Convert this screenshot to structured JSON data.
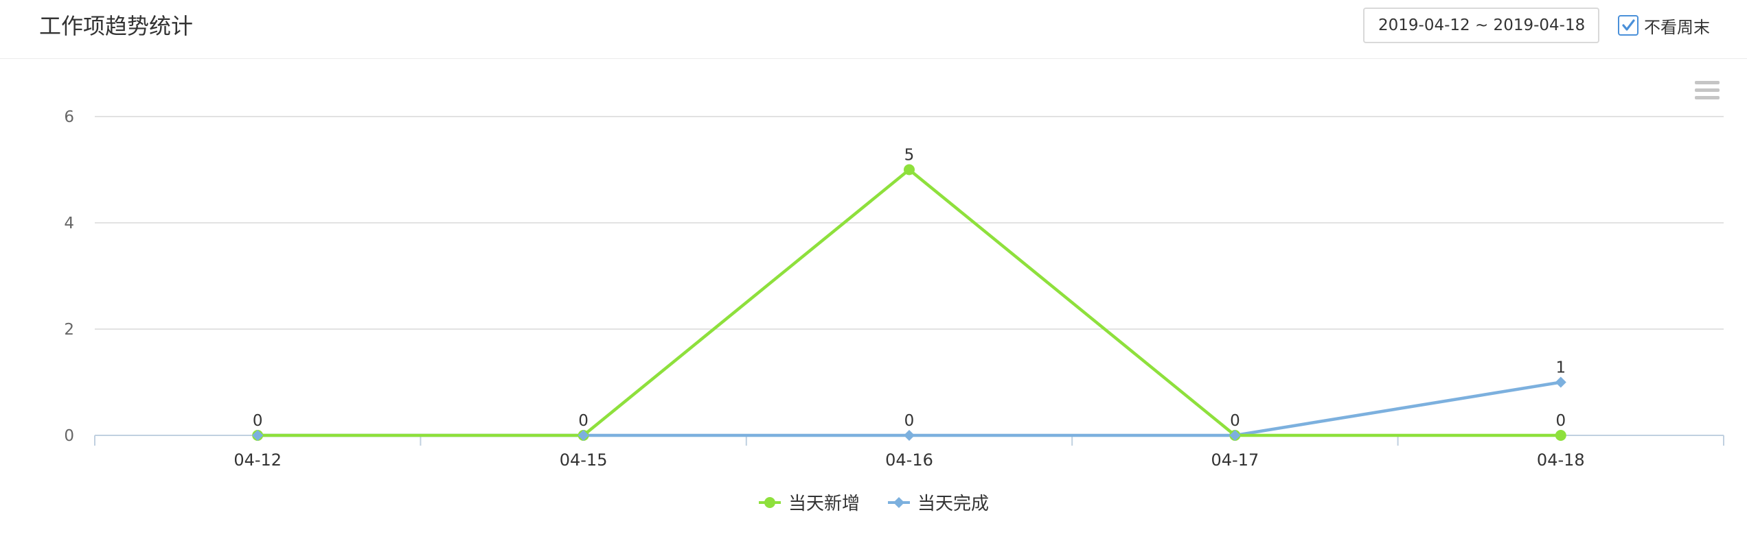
{
  "header": {
    "title": "工作项趋势统计",
    "date_range": "2019-04-12 ~ 2019-04-18",
    "weekend_checkbox": {
      "label": "不看周末",
      "checked": true
    }
  },
  "chart_menu_icon": "hamburger-menu-icon",
  "colors": {
    "green": "#8ee03c",
    "blue": "#7cb0de",
    "grid": "#d8d8d8",
    "axis": "#c0d0e0",
    "check": "#4a90d9"
  },
  "chart_data": {
    "type": "line",
    "categories": [
      "04-12",
      "04-15",
      "04-16",
      "04-17",
      "04-18"
    ],
    "series": [
      {
        "name": "当天新增",
        "values": [
          0,
          0,
          5,
          0,
          0
        ],
        "color": "#8ee03c",
        "marker": "circle"
      },
      {
        "name": "当天完成",
        "values": [
          0,
          0,
          0,
          0,
          1
        ],
        "color": "#7cb0de",
        "marker": "diamond"
      }
    ],
    "yticks": [
      0,
      2,
      4,
      6
    ],
    "ylim": [
      0,
      6
    ],
    "grid": true,
    "legend_position": "bottom-center",
    "data_labels": [
      {
        "category": "04-12",
        "label": "0"
      },
      {
        "category": "04-15",
        "label": "0"
      },
      {
        "category": "04-16",
        "label": "5"
      },
      {
        "category": "04-16",
        "label": "0"
      },
      {
        "category": "04-17",
        "label": "0"
      },
      {
        "category": "04-18",
        "label": "1"
      },
      {
        "category": "04-18",
        "label": "0"
      }
    ]
  }
}
